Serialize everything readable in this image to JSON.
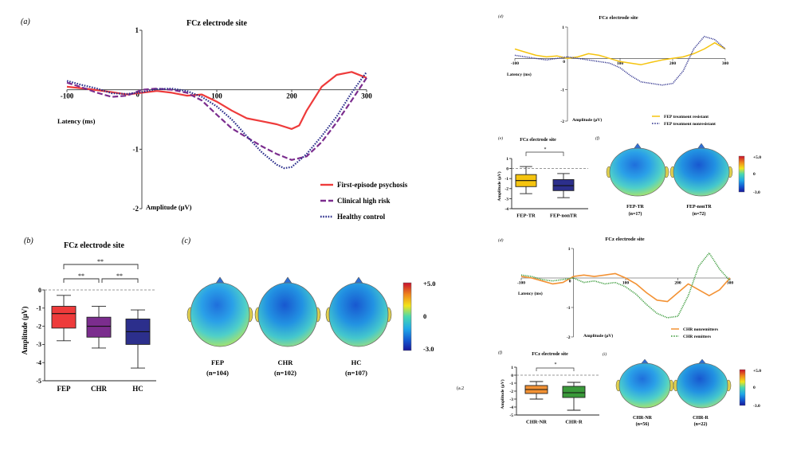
{
  "colors": {
    "fep": "#ee3b3b",
    "chr": "#7b2d8e",
    "hc": "#2c2f8c",
    "fep_tr": "#f5c40f",
    "fep_ntr": "#2c2f8c",
    "chr_nr": "#f39234",
    "chr_r": "#3a9a3a"
  },
  "panels": {
    "a": {
      "letter": "(a)",
      "title": "FCz electrode site",
      "xlabel": "Latency (ms)",
      "ylabel": "Amplitude  (μV)"
    },
    "b": {
      "letter": "(b)",
      "title": "FCz electrode site",
      "ylabel": "Amplitude (μV)",
      "sig1": "**",
      "sig2": "**",
      "sig3": "**"
    },
    "c": {
      "letter": "(c)",
      "scale_max": "+5.0",
      "scale_mid": "0",
      "scale_min": "-3.0",
      "maps": [
        {
          "label": "FEP",
          "n": "(n=104)"
        },
        {
          "label": "CHR",
          "n": "(n=102)"
        },
        {
          "label": "HC",
          "n": "(n=107)"
        }
      ]
    },
    "d": {
      "letter": "(d)",
      "title": "FCz electrode site",
      "xlabel": "Latency (ms)",
      "ylabel": "Amplitude  (μV)"
    },
    "e": {
      "letter": "(e)",
      "title": "FCz electrode site",
      "ylabel": "Amplitude (μV)",
      "sig": "*"
    },
    "f": {
      "letter": "(f)",
      "scale_max": "+5.0",
      "scale_mid": "0",
      "scale_min": "-3.0",
      "maps": [
        {
          "label": "FEP-TR",
          "n": "(n=17)"
        },
        {
          "label": "FEP-nonTR",
          "n": "(n=72)"
        }
      ]
    },
    "g": {
      "letter": "(d)",
      "title": "FCz electrode site",
      "xlabel": "Latency (ms)",
      "ylabel": "Amplitude  (μV)"
    },
    "h": {
      "letter": "(f)",
      "title": "FCz electrode site",
      "ylabel": "Amplitude (μV)",
      "sig": "*"
    },
    "i": {
      "letter": "(i)",
      "scale_max": "+5.0",
      "scale_mid": "0",
      "scale_min": "-3.0",
      "maps": [
        {
          "label": "CHR-NR",
          "n": "(n=56)"
        },
        {
          "label": "CHR-R",
          "n": "(n=22)"
        }
      ]
    },
    "stray": "(a.2"
  },
  "chart_data": [
    {
      "type": "line",
      "title": "FCz electrode site",
      "xlabel": "Latency (ms)",
      "ylabel": "Amplitude  (μV)",
      "xlim": [
        -100,
        300
      ],
      "ylim": [
        -2,
        1
      ],
      "xticks": [
        -100,
        100,
        200,
        300
      ],
      "yticks": [
        1,
        -1,
        -2
      ],
      "series": [
        {
          "name": "First-episode psychosis",
          "color": "#ee3b3b",
          "dash": "solid",
          "x": [
            -100,
            -70,
            -40,
            -20,
            0,
            20,
            40,
            60,
            80,
            100,
            120,
            140,
            160,
            180,
            200,
            210,
            220,
            240,
            260,
            280,
            300
          ],
          "y": [
            0.05,
            0.01,
            -0.04,
            -0.08,
            -0.05,
            -0.02,
            -0.05,
            -0.1,
            -0.08,
            -0.2,
            -0.35,
            -0.48,
            -0.53,
            -0.58,
            -0.66,
            -0.6,
            -0.35,
            0.05,
            0.25,
            0.3,
            0.2
          ]
        },
        {
          "name": "Clinical high risk",
          "color": "#7b2d8e",
          "dash": "dash",
          "x": [
            -100,
            -80,
            -60,
            -40,
            -20,
            0,
            20,
            40,
            60,
            80,
            100,
            120,
            140,
            160,
            180,
            200,
            220,
            240,
            260,
            280,
            300
          ],
          "y": [
            0.12,
            0.04,
            -0.05,
            -0.12,
            -0.1,
            0.0,
            0.02,
            0.0,
            -0.05,
            -0.18,
            -0.42,
            -0.65,
            -0.8,
            -0.95,
            -1.08,
            -1.18,
            -1.12,
            -0.88,
            -0.55,
            -0.18,
            0.2
          ]
        },
        {
          "name": "Healthy control",
          "color": "#2c2f8c",
          "dash": "dot",
          "x": [
            -100,
            -80,
            -60,
            -40,
            -20,
            0,
            20,
            40,
            60,
            80,
            100,
            120,
            140,
            160,
            180,
            190,
            200,
            220,
            240,
            260,
            280,
            300
          ],
          "y": [
            0.15,
            0.08,
            0.02,
            -0.06,
            -0.07,
            -0.04,
            0.01,
            0.02,
            -0.02,
            -0.12,
            -0.28,
            -0.5,
            -0.78,
            -1.05,
            -1.26,
            -1.32,
            -1.3,
            -1.08,
            -0.78,
            -0.45,
            -0.05,
            0.3
          ]
        }
      ]
    },
    {
      "type": "box",
      "title": "FCz electrode site",
      "ylabel": "Amplitude (μV)",
      "ylim": [
        -5,
        0
      ],
      "yticks": [
        0,
        -1,
        -2,
        -3,
        -4,
        -5
      ],
      "categories": [
        "FEP",
        "CHR",
        "HC"
      ],
      "boxes": [
        {
          "name": "FEP",
          "color": "#ee3b3b",
          "min": -2.8,
          "q1": -2.1,
          "median": -1.3,
          "q3": -0.9,
          "max": -0.3
        },
        {
          "name": "CHR",
          "color": "#7b2d8e",
          "min": -3.2,
          "q1": -2.6,
          "median": -2.0,
          "q3": -1.5,
          "max": -0.9
        },
        {
          "name": "HC",
          "color": "#2c2f8c",
          "min": -4.3,
          "q1": -3.0,
          "median": -2.3,
          "q3": -1.6,
          "max": -1.1
        }
      ]
    },
    {
      "type": "line",
      "title": "FCz electrode site",
      "xlabel": "Latency (ms)",
      "ylabel": "Amplitude  (μV)",
      "xlim": [
        -100,
        300
      ],
      "ylim": [
        -2,
        1
      ],
      "xticks": [
        -100,
        100,
        200,
        300
      ],
      "yticks": [
        1,
        -1,
        -2
      ],
      "series": [
        {
          "name": "FEP treatment resistant",
          "color": "#f5c40f",
          "dash": "solid",
          "x": [
            -100,
            -80,
            -60,
            -40,
            -20,
            0,
            20,
            40,
            60,
            80,
            100,
            120,
            140,
            160,
            180,
            200,
            220,
            240,
            260,
            280,
            300
          ],
          "y": [
            0.3,
            0.2,
            0.1,
            0.05,
            0.08,
            0.0,
            0.05,
            0.15,
            0.1,
            0.0,
            -0.1,
            -0.15,
            -0.2,
            -0.12,
            -0.05,
            0.0,
            0.05,
            0.15,
            0.3,
            0.5,
            0.3
          ]
        },
        {
          "name": "FEP treatment nonresistant",
          "color": "#2c2f8c",
          "dash": "dot",
          "x": [
            -100,
            -80,
            -60,
            -40,
            -20,
            0,
            20,
            40,
            60,
            80,
            100,
            120,
            140,
            160,
            180,
            200,
            220,
            240,
            260,
            280,
            300
          ],
          "y": [
            0.1,
            0.05,
            0.0,
            -0.05,
            0.0,
            0.05,
            0.0,
            -0.05,
            -0.1,
            -0.15,
            -0.3,
            -0.55,
            -0.75,
            -0.8,
            -0.85,
            -0.8,
            -0.4,
            0.3,
            0.7,
            0.6,
            0.3
          ]
        }
      ]
    },
    {
      "type": "box",
      "title": "FCz electrode site",
      "ylabel": "Amplitude (μV)",
      "ylim": [
        -4,
        1
      ],
      "yticks": [
        1,
        0,
        -1,
        -2,
        -3,
        -4
      ],
      "categories": [
        "FEP-TR",
        "FEP-nonTR"
      ],
      "boxes": [
        {
          "name": "FEP-TR",
          "color": "#f5c40f",
          "min": -2.5,
          "q1": -1.8,
          "median": -1.2,
          "q3": -0.6,
          "max": 0.2
        },
        {
          "name": "FEP-nonTR",
          "color": "#2c2f8c",
          "min": -2.9,
          "q1": -2.2,
          "median": -1.7,
          "q3": -1.1,
          "max": -0.5
        }
      ]
    },
    {
      "type": "line",
      "title": "FCz electrode site",
      "xlabel": "Latency (ms)",
      "ylabel": "Amplitude  (μV)",
      "xlim": [
        -100,
        300
      ],
      "ylim": [
        -2,
        1
      ],
      "xticks": [
        -100,
        100,
        200,
        300
      ],
      "yticks": [
        1,
        -1,
        -2
      ],
      "series": [
        {
          "name": "CHR nonremitters",
          "color": "#f39234",
          "dash": "solid",
          "x": [
            -100,
            -80,
            -60,
            -40,
            -20,
            0,
            20,
            40,
            60,
            80,
            100,
            120,
            140,
            160,
            180,
            200,
            220,
            240,
            260,
            280,
            300
          ],
          "y": [
            0.05,
            0.0,
            -0.1,
            -0.2,
            -0.15,
            0.05,
            0.1,
            0.05,
            0.1,
            0.15,
            0.0,
            -0.2,
            -0.5,
            -0.75,
            -0.8,
            -0.5,
            -0.2,
            -0.4,
            -0.6,
            -0.4,
            0.0
          ]
        },
        {
          "name": "CHR remitters",
          "color": "#3a9a3a",
          "dash": "dot",
          "x": [
            -100,
            -80,
            -60,
            -40,
            -20,
            0,
            20,
            40,
            60,
            80,
            100,
            120,
            140,
            160,
            180,
            200,
            220,
            240,
            260,
            280,
            300
          ],
          "y": [
            0.1,
            0.05,
            -0.05,
            -0.1,
            -0.05,
            0.0,
            -0.15,
            -0.1,
            -0.2,
            -0.15,
            -0.3,
            -0.55,
            -0.9,
            -1.2,
            -1.35,
            -1.3,
            -0.6,
            0.4,
            0.85,
            0.3,
            -0.1
          ]
        }
      ]
    },
    {
      "type": "box",
      "title": "FCz electrode site",
      "ylabel": "Amplitude (μV)",
      "ylim": [
        -5,
        1
      ],
      "yticks": [
        1,
        0,
        -1,
        -2,
        -3,
        -4,
        -5
      ],
      "categories": [
        "CHR-NR",
        "CHR-R"
      ],
      "boxes": [
        {
          "name": "CHR-NR",
          "color": "#f39234",
          "min": -3.0,
          "q1": -2.3,
          "median": -1.8,
          "q3": -1.3,
          "max": -0.8
        },
        {
          "name": "CHR-R",
          "color": "#3a9a3a",
          "min": -4.4,
          "q1": -2.8,
          "median": -2.2,
          "q3": -1.4,
          "max": -0.9
        }
      ]
    }
  ]
}
